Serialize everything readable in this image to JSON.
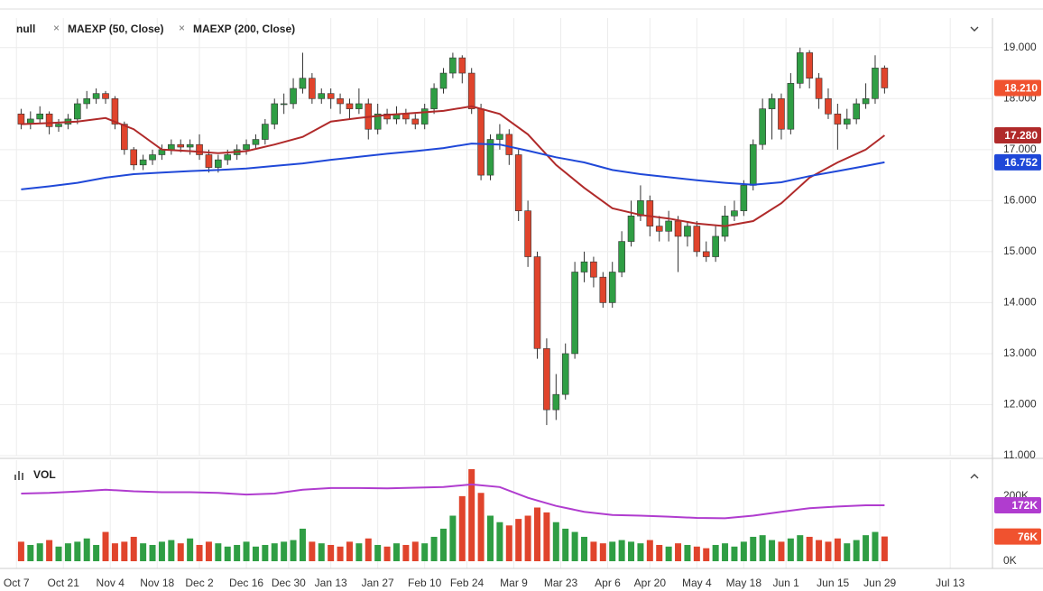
{
  "chart_data": [
    {
      "type": "candlestick",
      "x": [
        1,
        3,
        5,
        7,
        9,
        11,
        13,
        15,
        17,
        19,
        21,
        23,
        25,
        27,
        29,
        31,
        33,
        35,
        37,
        39,
        41,
        43,
        45,
        47,
        49,
        51,
        53,
        55,
        57,
        59,
        61,
        63,
        65,
        67,
        69,
        71,
        73,
        75,
        77,
        79,
        81,
        83,
        85,
        87,
        89,
        91,
        93,
        95,
        97,
        99,
        101,
        103,
        105,
        107,
        109,
        111,
        113,
        115,
        117,
        119,
        121,
        123,
        125,
        127,
        129,
        131,
        133,
        135,
        137,
        139,
        141,
        143,
        145,
        147,
        149,
        151,
        153,
        155,
        157,
        159,
        161,
        163,
        165,
        167,
        169,
        171,
        173,
        175,
        177,
        179,
        181,
        183,
        185
      ],
      "series": [
        {
          "name": "null",
          "up_color": "#2f9e44",
          "down_color": "#e0442c",
          "tag_color": "#f0522f",
          "tag": "18.210",
          "open": [
            17.7,
            17.5,
            17.6,
            17.7,
            17.45,
            17.5,
            17.6,
            17.9,
            18.0,
            18.1,
            18.0,
            17.5,
            17.0,
            16.7,
            16.8,
            16.9,
            17.0,
            17.1,
            17.05,
            17.1,
            16.9,
            16.65,
            16.8,
            16.9,
            17.0,
            17.1,
            17.2,
            17.5,
            17.9,
            17.9,
            18.2,
            18.4,
            18.0,
            18.1,
            18.0,
            17.9,
            17.8,
            17.9,
            17.4,
            17.7,
            17.6,
            17.7,
            17.6,
            17.5,
            17.8,
            18.2,
            18.5,
            18.8,
            18.5,
            17.8,
            16.5,
            17.2,
            17.3,
            16.9,
            15.8,
            14.9,
            13.1,
            11.9,
            12.2,
            13.0,
            14.6,
            14.8,
            14.5,
            14.0,
            14.6,
            15.2,
            15.7,
            16.0,
            15.5,
            15.4,
            15.6,
            15.3,
            15.5,
            15.0,
            14.9,
            15.3,
            15.7,
            15.8,
            16.3,
            17.1,
            17.8,
            18.0,
            17.4,
            18.3,
            18.9,
            18.4,
            18.0,
            17.7,
            17.5,
            17.6,
            17.9,
            18.0,
            18.6
          ],
          "high": [
            17.8,
            17.75,
            17.85,
            17.75,
            17.6,
            17.7,
            18.0,
            18.15,
            18.2,
            18.15,
            18.05,
            17.55,
            17.05,
            16.9,
            17.0,
            17.1,
            17.2,
            17.2,
            17.2,
            17.3,
            17.0,
            16.9,
            17.0,
            17.1,
            17.2,
            17.3,
            17.6,
            18.0,
            18.1,
            18.4,
            18.9,
            18.5,
            18.2,
            18.2,
            18.1,
            18.0,
            18.2,
            18.0,
            17.9,
            17.8,
            17.85,
            17.8,
            17.7,
            17.9,
            18.3,
            18.6,
            18.9,
            18.85,
            18.6,
            17.9,
            17.3,
            17.5,
            17.4,
            17.0,
            16.0,
            15.0,
            13.3,
            12.6,
            13.2,
            14.8,
            15.0,
            14.9,
            14.6,
            14.8,
            15.4,
            16.0,
            16.3,
            16.1,
            15.7,
            15.8,
            15.7,
            15.6,
            15.6,
            15.2,
            15.5,
            15.9,
            16.0,
            16.4,
            17.2,
            18.0,
            18.1,
            18.1,
            18.5,
            19.0,
            18.95,
            18.5,
            18.2,
            17.9,
            17.8,
            18.0,
            18.3,
            18.85,
            18.65
          ],
          "low": [
            17.4,
            17.4,
            17.5,
            17.3,
            17.35,
            17.4,
            17.5,
            17.8,
            17.9,
            17.9,
            17.4,
            16.9,
            16.6,
            16.6,
            16.7,
            16.8,
            16.9,
            16.95,
            16.9,
            16.8,
            16.55,
            16.55,
            16.7,
            16.8,
            16.9,
            17.0,
            17.1,
            17.4,
            17.7,
            17.8,
            18.1,
            17.9,
            17.9,
            17.8,
            17.7,
            17.6,
            17.7,
            17.2,
            17.3,
            17.5,
            17.5,
            17.5,
            17.4,
            17.4,
            17.7,
            18.1,
            18.4,
            18.3,
            17.7,
            16.4,
            16.4,
            17.0,
            16.7,
            15.6,
            14.7,
            12.9,
            11.6,
            11.7,
            12.1,
            12.9,
            14.4,
            14.3,
            13.9,
            13.9,
            14.5,
            15.1,
            15.6,
            15.3,
            15.2,
            15.2,
            14.6,
            15.1,
            14.9,
            14.8,
            14.8,
            15.2,
            15.6,
            15.7,
            16.2,
            17.0,
            17.2,
            17.2,
            17.3,
            18.2,
            18.2,
            17.8,
            17.6,
            17.0,
            17.4,
            17.5,
            17.8,
            17.9,
            18.1
          ],
          "close": [
            17.5,
            17.6,
            17.7,
            17.45,
            17.5,
            17.6,
            17.9,
            18.0,
            18.1,
            18.0,
            17.5,
            17.0,
            16.7,
            16.8,
            16.9,
            17.0,
            17.1,
            17.05,
            17.1,
            16.9,
            16.65,
            16.8,
            16.9,
            17.0,
            17.1,
            17.2,
            17.5,
            17.9,
            17.9,
            18.2,
            18.4,
            18.0,
            18.1,
            18.0,
            17.9,
            17.8,
            17.9,
            17.4,
            17.7,
            17.6,
            17.7,
            17.6,
            17.5,
            17.8,
            18.2,
            18.5,
            18.8,
            18.5,
            17.8,
            16.5,
            17.2,
            17.3,
            16.9,
            15.8,
            14.9,
            13.1,
            11.9,
            12.2,
            13.0,
            14.6,
            14.8,
            14.5,
            14.0,
            14.6,
            15.2,
            15.7,
            16.0,
            15.5,
            15.4,
            15.6,
            15.3,
            15.5,
            15.0,
            14.9,
            15.3,
            15.7,
            15.8,
            16.3,
            17.1,
            17.8,
            18.0,
            17.4,
            18.3,
            18.9,
            18.4,
            18.0,
            17.7,
            17.5,
            17.6,
            17.9,
            18.0,
            18.6,
            18.21
          ]
        },
        {
          "name": "MAEXP (50, Close)",
          "color": "#b02a2a",
          "tag": "17.280",
          "x": [
            1,
            7,
            13,
            19,
            25,
            31,
            37,
            43,
            49,
            55,
            61,
            67,
            73,
            79,
            85,
            91,
            97,
            103,
            109,
            115,
            121,
            127,
            133,
            139,
            145,
            151,
            157,
            163,
            169,
            175,
            181,
            185
          ],
          "values": [
            17.5,
            17.52,
            17.55,
            17.62,
            17.4,
            17.0,
            16.97,
            16.93,
            16.97,
            17.1,
            17.25,
            17.55,
            17.62,
            17.68,
            17.72,
            17.76,
            17.85,
            17.7,
            17.3,
            16.7,
            16.25,
            15.85,
            15.72,
            15.65,
            15.55,
            15.5,
            15.6,
            15.95,
            16.45,
            16.75,
            17.0,
            17.28
          ]
        },
        {
          "name": "MAEXP (200, Close)",
          "color": "#1f48d8",
          "tag": "16.752",
          "x": [
            1,
            7,
            13,
            19,
            25,
            31,
            37,
            43,
            49,
            55,
            61,
            67,
            73,
            79,
            85,
            91,
            97,
            103,
            109,
            115,
            121,
            127,
            133,
            139,
            145,
            151,
            157,
            163,
            169,
            175,
            181,
            185
          ],
          "values": [
            16.22,
            16.28,
            16.35,
            16.45,
            16.52,
            16.55,
            16.58,
            16.6,
            16.63,
            16.68,
            16.73,
            16.8,
            16.86,
            16.92,
            16.97,
            17.03,
            17.12,
            17.1,
            16.98,
            16.85,
            16.75,
            16.6,
            16.52,
            16.46,
            16.4,
            16.35,
            16.31,
            16.36,
            16.48,
            16.58,
            16.68,
            16.752
          ]
        }
      ],
      "ylim": [
        11,
        19.58
      ],
      "yticks": [
        {
          "value": 11,
          "label": "11.000"
        },
        {
          "value": 12,
          "label": "12.000"
        },
        {
          "value": 13,
          "label": "13.000"
        },
        {
          "value": 14,
          "label": "14.000"
        },
        {
          "value": 15,
          "label": "15.000"
        },
        {
          "value": 16,
          "label": "16.000"
        },
        {
          "value": 17,
          "label": "17.000"
        },
        {
          "value": 18,
          "label": "18.000"
        },
        {
          "value": 19,
          "label": "19.000"
        }
      ],
      "grid": true
    },
    {
      "type": "bar",
      "series": [
        {
          "name": "VOL",
          "tag": "76K",
          "tag_color": "#f0522f",
          "values": [
            60,
            50,
            55,
            65,
            45,
            55,
            60,
            70,
            50,
            90,
            55,
            60,
            75,
            55,
            50,
            60,
            65,
            55,
            70,
            50,
            60,
            55,
            45,
            50,
            60,
            45,
            50,
            55,
            60,
            65,
            100,
            60,
            55,
            50,
            45,
            60,
            55,
            70,
            50,
            45,
            55,
            50,
            60,
            55,
            75,
            100,
            140,
            200,
            283,
            210,
            140,
            120,
            110,
            130,
            140,
            165,
            150,
            120,
            100,
            90,
            75,
            60,
            55,
            60,
            65,
            60,
            55,
            65,
            50,
            45,
            55,
            50,
            45,
            40,
            50,
            55,
            45,
            60,
            75,
            80,
            65,
            60,
            70,
            80,
            75,
            65,
            60,
            70,
            55,
            65,
            80,
            90,
            76
          ]
        },
        {
          "color": "#b03ccf",
          "tag": "172K",
          "x": [
            1,
            7,
            13,
            19,
            25,
            31,
            37,
            43,
            49,
            55,
            61,
            67,
            73,
            79,
            85,
            91,
            97,
            103,
            109,
            115,
            121,
            127,
            133,
            139,
            145,
            151,
            157,
            163,
            169,
            175,
            181,
            185
          ],
          "values": [
            208,
            210,
            214,
            220,
            215,
            212,
            212,
            210,
            205,
            208,
            220,
            225,
            225,
            224,
            226,
            228,
            236,
            228,
            195,
            170,
            152,
            142,
            140,
            137,
            133,
            132,
            140,
            152,
            163,
            168,
            172,
            172
          ]
        }
      ],
      "ylim": [
        0,
        305
      ],
      "yticks": [
        {
          "value": 0,
          "label": "0K"
        },
        {
          "value": 200,
          "label": "200K"
        }
      ],
      "xlim": [
        -3.5,
        208
      ],
      "xticks": [
        {
          "value": 0,
          "label": "Oct 7"
        },
        {
          "value": 10,
          "label": "Oct 21"
        },
        {
          "value": 20,
          "label": "Nov 4"
        },
        {
          "value": 30,
          "label": "Nov 18"
        },
        {
          "value": 39,
          "label": "Dec 2"
        },
        {
          "value": 49,
          "label": "Dec 16"
        },
        {
          "value": 58,
          "label": "Dec 30"
        },
        {
          "value": 67,
          "label": "Jan 13"
        },
        {
          "value": 77,
          "label": "Jan 27"
        },
        {
          "value": 87,
          "label": "Feb 10"
        },
        {
          "value": 96,
          "label": "Feb 24"
        },
        {
          "value": 106,
          "label": "Mar 9"
        },
        {
          "value": 116,
          "label": "Mar 23"
        },
        {
          "value": 126,
          "label": "Apr 6"
        },
        {
          "value": 135,
          "label": "Apr 20"
        },
        {
          "value": 145,
          "label": "May 4"
        },
        {
          "value": 155,
          "label": "May 18"
        },
        {
          "value": 164,
          "label": "Jun 1"
        },
        {
          "value": 174,
          "label": "Jun 15"
        },
        {
          "value": 184,
          "label": "Jun 29"
        },
        {
          "value": 199,
          "label": "Jul 13"
        }
      ],
      "grid": true
    }
  ]
}
